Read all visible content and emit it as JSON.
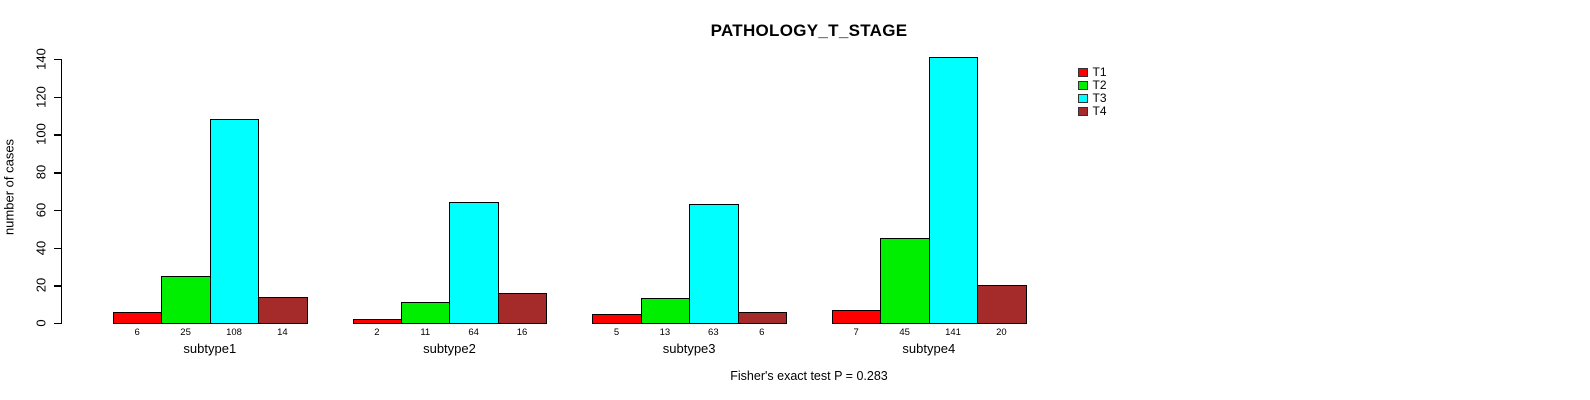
{
  "chart_data": {
    "type": "bar",
    "title": "PATHOLOGY_T_STAGE",
    "xlabel": "",
    "ylabel": "number of cases",
    "ylim": [
      0,
      140
    ],
    "yticks": [
      0,
      20,
      40,
      60,
      80,
      100,
      120,
      140
    ],
    "grid": false,
    "legend_position": "top-right-inside",
    "bar_value_labels_shown": true,
    "categories": [
      "subtype1",
      "subtype2",
      "subtype3",
      "subtype4"
    ],
    "series": [
      {
        "name": "T1",
        "color": "#ff0000",
        "values": [
          6,
          2,
          5,
          7
        ]
      },
      {
        "name": "T2",
        "color": "#00ee00",
        "values": [
          25,
          11,
          13,
          45
        ]
      },
      {
        "name": "T3",
        "color": "#00ffff",
        "values": [
          108,
          64,
          63,
          141
        ]
      },
      {
        "name": "T4",
        "color": "#a52a2a",
        "values": [
          14,
          16,
          6,
          20
        ]
      }
    ],
    "annotation": "Fisher's exact test P = 0.283"
  }
}
